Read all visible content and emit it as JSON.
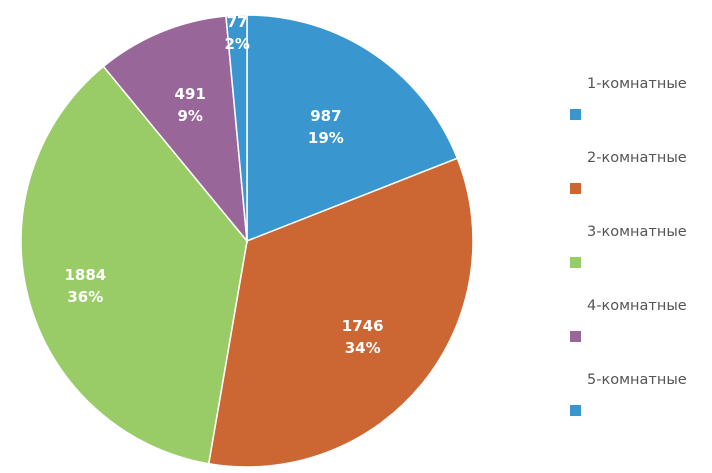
{
  "chart_data": {
    "type": "pie",
    "categories": [
      "1-комнатные",
      "2-комнатные",
      "3-комнатные",
      "4-комнатные",
      "5-комнатные"
    ],
    "values": [
      987,
      1746,
      1884,
      491,
      77
    ],
    "percent_labels": [
      "19%",
      "34%",
      "36%",
      "9%",
      "2%"
    ],
    "value_labels": [
      "987",
      "1746",
      "1884",
      "491",
      "77"
    ],
    "colors": [
      "#3A96CF",
      "#CC6633",
      "#99CC66",
      "#996699",
      "#3A96CF"
    ],
    "start_angle": "12 o'clock",
    "direction": "clockwise",
    "legend_position": "right"
  }
}
